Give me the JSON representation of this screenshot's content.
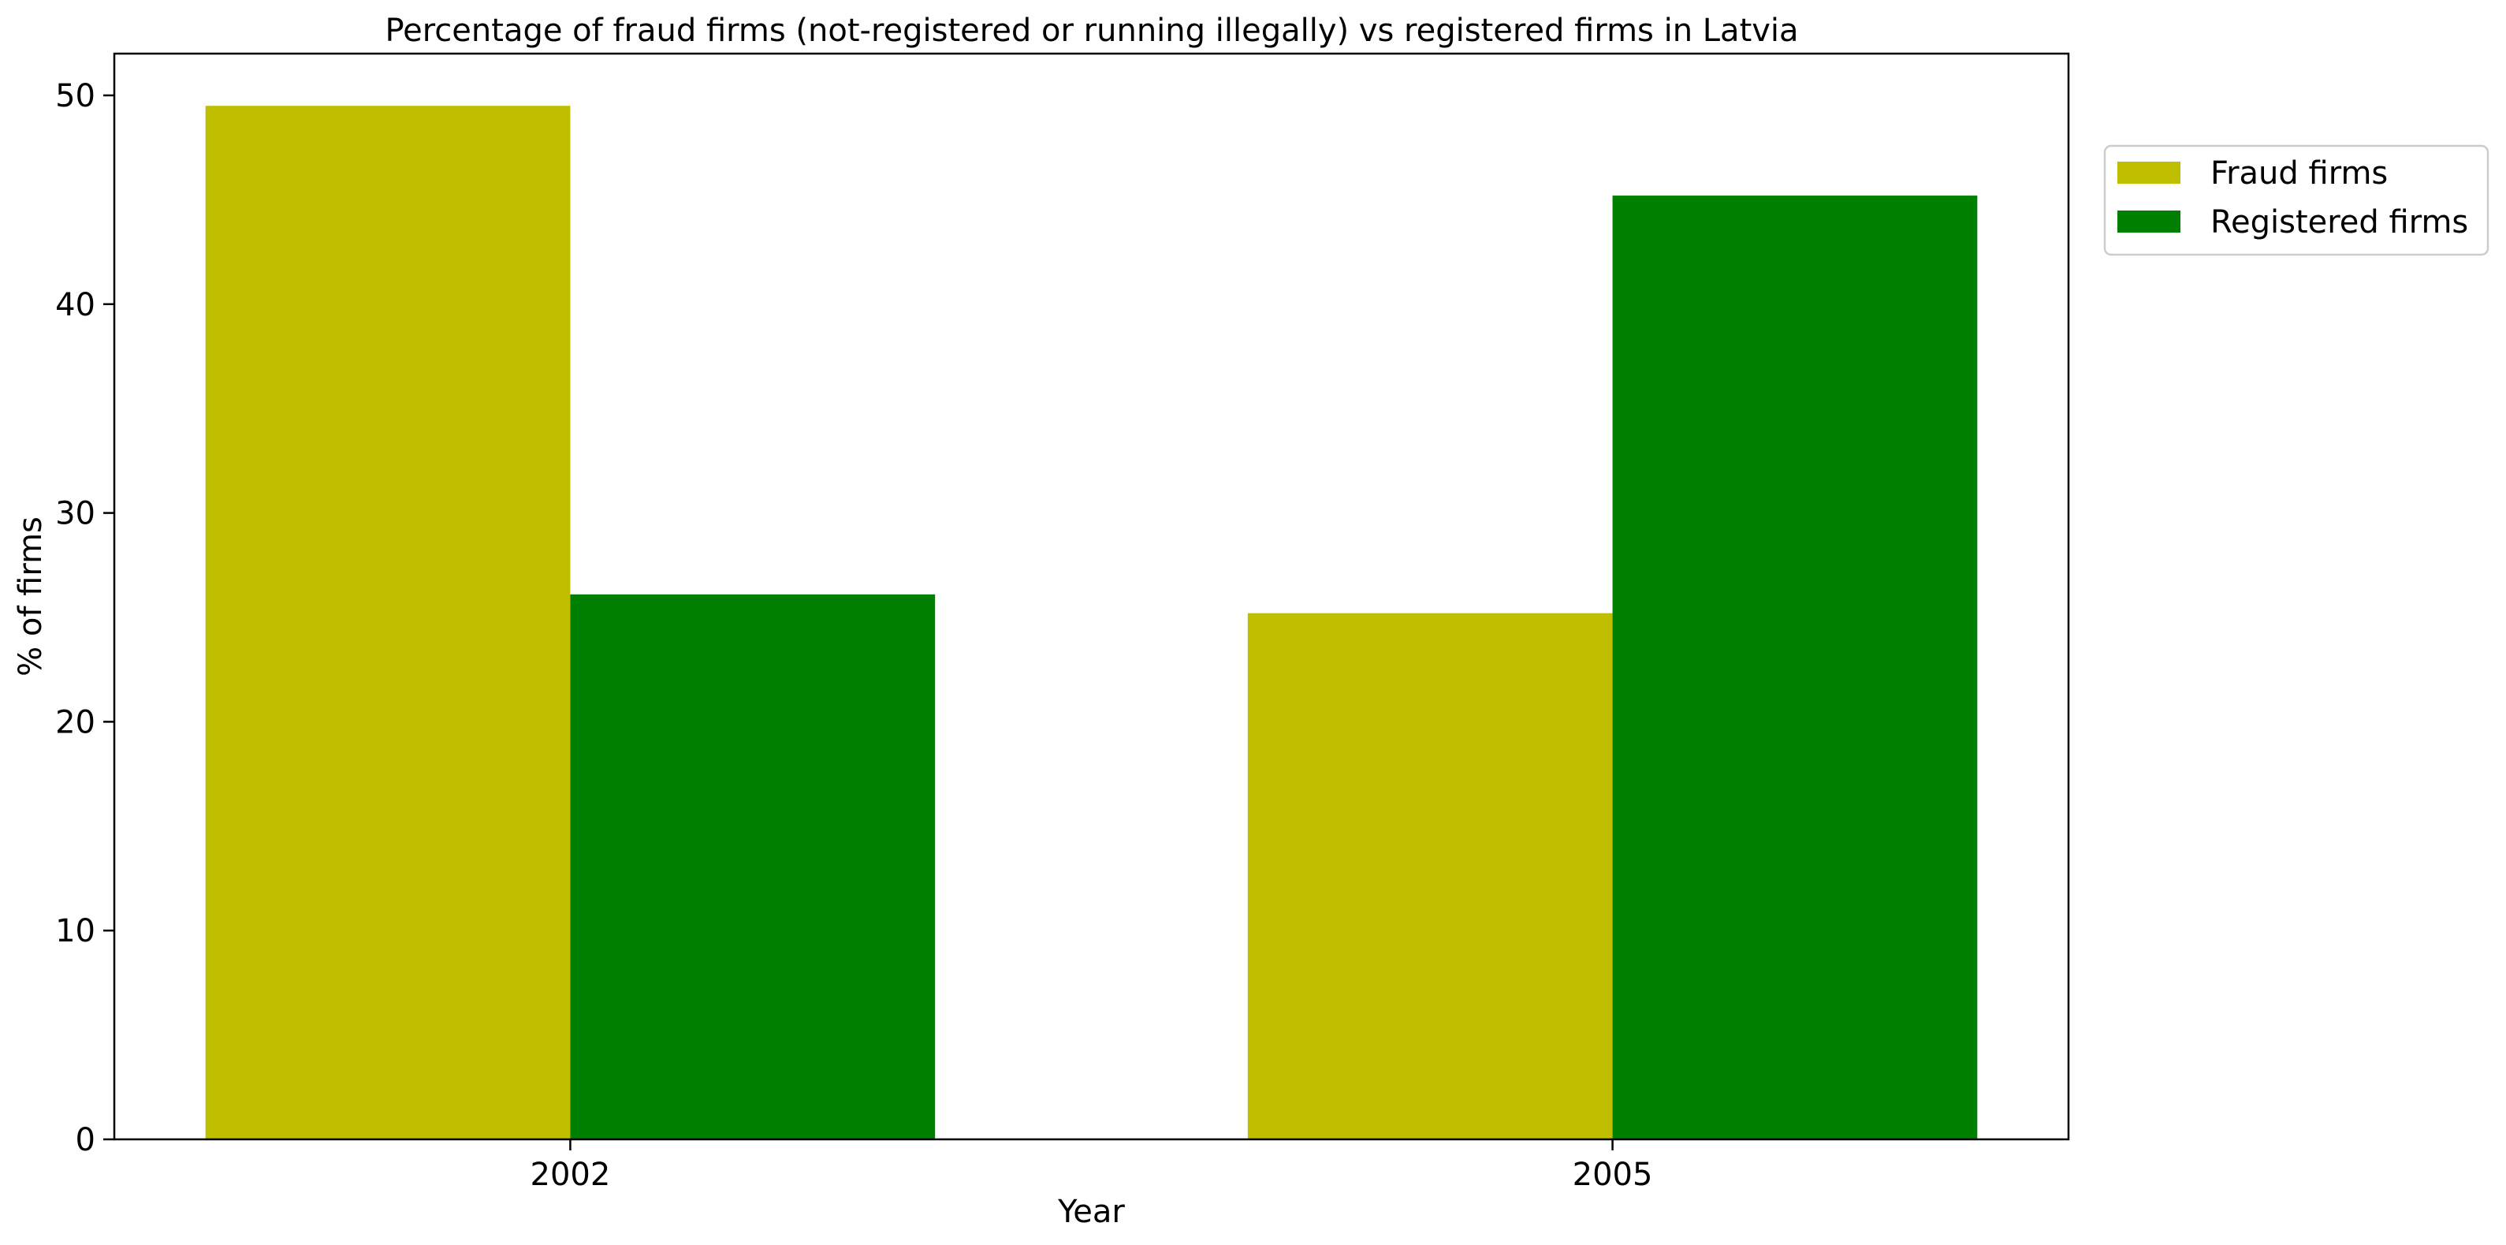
{
  "chart_data": {
    "type": "bar",
    "title": "Percentage of fraud firms (not-registered or running illegally) vs registered firms in Latvia",
    "xlabel": "Year",
    "ylabel": "% of firms",
    "categories": [
      "2002",
      "2005"
    ],
    "series": [
      {
        "name": "Fraud firms",
        "values": [
          49.5,
          25.2
        ],
        "color": "#bfbf00"
      },
      {
        "name": "Registered firms",
        "values": [
          26.1,
          45.2
        ],
        "color": "#008000"
      }
    ],
    "ylim": [
      0,
      52
    ],
    "yticks": [
      0,
      10,
      20,
      30,
      40,
      50
    ],
    "grid": false,
    "legend_position": "outside-top-right"
  }
}
